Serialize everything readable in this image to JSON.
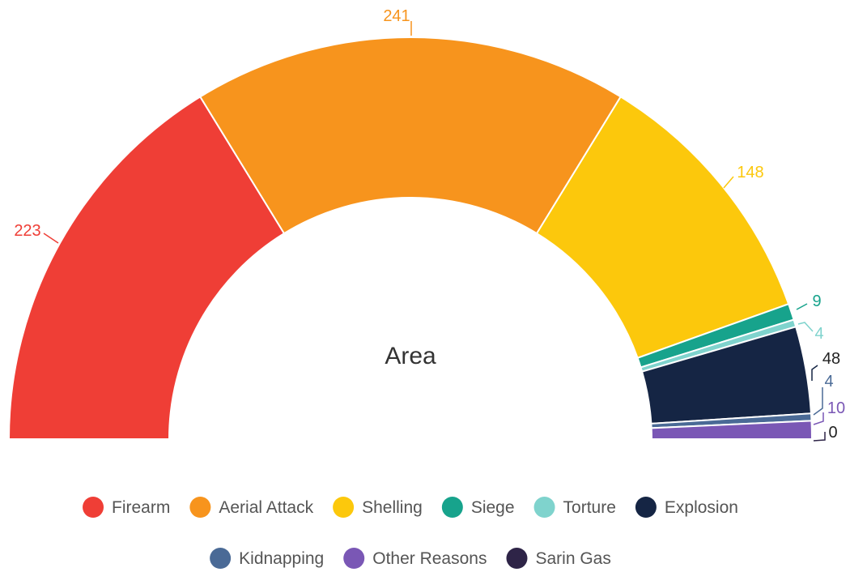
{
  "chart_data": {
    "type": "pie",
    "variant": "semi-donut",
    "title": "Area",
    "legend_position": "bottom",
    "series": [
      {
        "name": "Firearm",
        "value": 223,
        "color": "#ef3e36"
      },
      {
        "name": "Aerial Attack",
        "value": 241,
        "color": "#f7941d"
      },
      {
        "name": "Shelling",
        "value": 148,
        "color": "#fcc80c"
      },
      {
        "name": "Siege",
        "value": 9,
        "color": "#17a38c"
      },
      {
        "name": "Torture",
        "value": 4,
        "color": "#7fd3cd"
      },
      {
        "name": "Explosion",
        "value": 48,
        "color": "#152544"
      },
      {
        "name": "Kidnapping",
        "value": 4,
        "color": "#4a6a96"
      },
      {
        "name": "Other Reasons",
        "value": 10,
        "color": "#7a57b5"
      },
      {
        "name": "Sarin Gas",
        "value": 0,
        "color": "#2e2447"
      }
    ]
  }
}
